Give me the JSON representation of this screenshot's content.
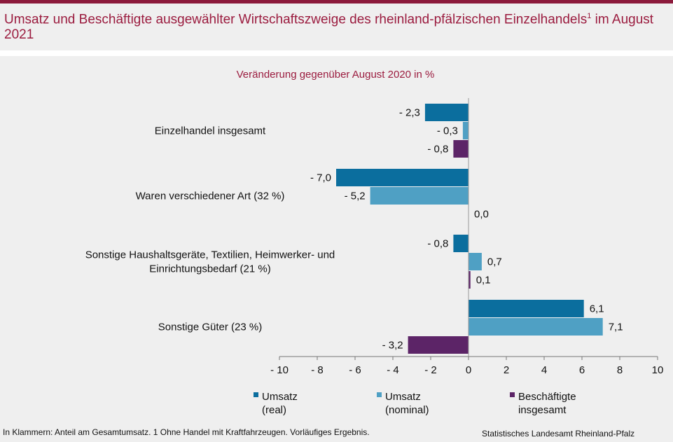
{
  "header": {
    "title_main": "Umsatz und Beschäftigte ausgewählter Wirtschaftszweige des rheinland-pfälzischen Einzelhandels",
    "title_sup": "1",
    "title_tail": " im August 2021"
  },
  "chart_data": {
    "type": "bar",
    "orientation": "horizontal",
    "subtitle": "Veränderung gegenüber August 2020 in %",
    "categories": [
      [
        "Einzelhandel insgesamt"
      ],
      [
        "Waren verschiedener Art (32 %)"
      ],
      [
        "Sonstige Haushaltsgeräte, Textilien, Heimwerker- und",
        "Einrichtungsbedarf (21 %)"
      ],
      [
        "Sonstige Güter (23 %)"
      ]
    ],
    "series": [
      {
        "name_lines": [
          "Umsatz",
          "(real)"
        ],
        "color": "#0b6e9e",
        "values": [
          -2.3,
          -7.0,
          -0.8,
          6.1
        ],
        "labels": [
          "- 2,3",
          "- 7,0",
          "- 0,8",
          "6,1"
        ]
      },
      {
        "name_lines": [
          "Umsatz",
          "(nominal)"
        ],
        "color": "#4fa0c4",
        "values": [
          -0.3,
          -5.2,
          0.7,
          7.1
        ],
        "labels": [
          "- 0,3",
          "- 5,2",
          "0,7",
          "7,1"
        ]
      },
      {
        "name_lines": [
          "Beschäftigte",
          "insgesamt"
        ],
        "color": "#5c2467",
        "values": [
          -0.8,
          0.0,
          0.1,
          -3.2
        ],
        "labels": [
          "- 0,8",
          "0,0",
          "0,1",
          "- 3,2"
        ]
      }
    ],
    "xlim": [
      -10,
      10
    ],
    "xticks": [
      -10,
      -8,
      -6,
      -4,
      -2,
      0,
      2,
      4,
      6,
      8,
      10
    ],
    "xtick_labels": [
      "- 10",
      "- 8",
      "- 6",
      "- 4",
      "- 2",
      "0",
      "2",
      "4",
      "6",
      "8",
      "10"
    ],
    "grid": false,
    "legend_position": "bottom"
  },
  "footer": {
    "note": "In Klammern: Anteil am Gesamtumsatz. 1 Ohne Handel mit Kraftfahrzeugen. Vorläufiges Ergebnis.",
    "source": "Statistisches Landesamt Rheinland-Pfalz"
  }
}
